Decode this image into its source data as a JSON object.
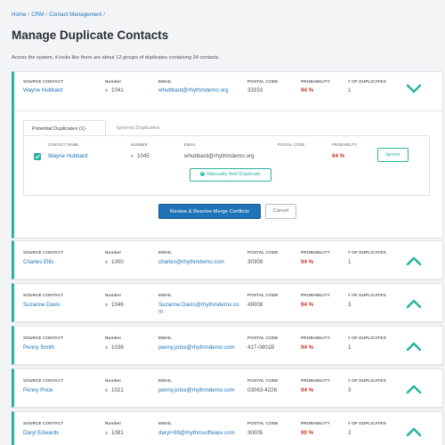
{
  "breadcrumb": {
    "home": "Home",
    "crm": "CRM",
    "contact_management": "Contact Management",
    "sep": "/"
  },
  "page_title": "Manage Duplicate Contacts",
  "intro": "Across the system, it looks like there are about 12 groups of duplicates containing 34 contacts.",
  "labels": {
    "source_contact": "SOURCE CONTACT",
    "number": "Number",
    "email": "EMAIL",
    "postal_code": "POSTAL CODE",
    "probability": "PROBABILITY",
    "num_duplicates": "# OF DUPLICATES",
    "contact_name": "CONTACT NAME",
    "email_small": "EMAIL",
    "postal_small": "POSTAL CODE",
    "probability_small": "PROBABILITY",
    "number_small": "NUMBER"
  },
  "expanded_group": {
    "name": "Wayne Hubbard",
    "number": "1041",
    "email": "whubbard@rhythmdemo.org",
    "postal": "33333",
    "probability": "94 %",
    "duplicates": "1",
    "tabs": [
      "Potential Duplicates (1)",
      "Ignored Duplicates"
    ],
    "duplicate": {
      "name": "Wayne Hubbard",
      "number": "1045",
      "email": "whubbard@rhythmdemo.org",
      "postal": "",
      "probability": "94 %",
      "ignore_label": "Ignore"
    },
    "manual_add_label": "Manually Add Duplicate",
    "review_label": "Review & Resolve Merge Conflicts",
    "cancel_label": "Cancel"
  },
  "groups": [
    {
      "name": "Charles Ellis",
      "number": "1000",
      "email": "charles@rhythmdemo.com",
      "postal": "30309",
      "probability": "94 %",
      "duplicates": "1"
    },
    {
      "name": "Suzanne Davis",
      "number": "1046",
      "email": "Suzanne.Davis@rhythmdemo.co",
      "email2": "m",
      "postal": "49008",
      "probability": "94 %",
      "duplicates": "3"
    },
    {
      "name": "Penny Smith",
      "number": "1036",
      "email": "penny.price@rhythmdemo.com",
      "postal": "417-0801B",
      "probability": "94 %",
      "duplicates": "1"
    },
    {
      "name": "Penny Price",
      "number": "1021",
      "email": "penny.price@rhythmdemo.com",
      "postal": "03063-4226",
      "probability": "94 %",
      "duplicates": "3"
    },
    {
      "name": "Daryl Edwards",
      "number": "1081",
      "email": "daryl+88@rhythmsoftware.com",
      "postal": "30005",
      "probability": "90 %",
      "duplicates": "2"
    }
  ],
  "colors": {
    "accent": "#2ab3a2",
    "link": "#1f73b7",
    "probability": "#c0392b"
  }
}
